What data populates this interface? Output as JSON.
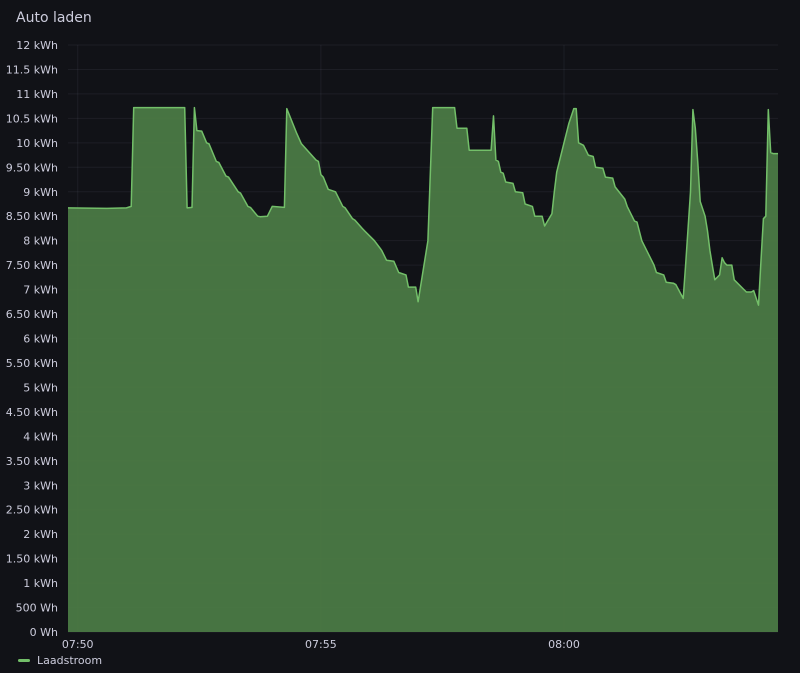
{
  "panel": {
    "title": "Auto laden"
  },
  "chart_data": {
    "type": "area",
    "title": "Auto laden",
    "x_unit": "minutes",
    "x_range": [
      49.8,
      64.4
    ],
    "x_ticks": [
      {
        "value": 50,
        "label": "07:50"
      },
      {
        "value": 55,
        "label": "07:55"
      },
      {
        "value": 60,
        "label": "08:00"
      }
    ],
    "ylim": [
      0,
      12
    ],
    "y_ticks": [
      {
        "value": 0,
        "label": "0 Wh"
      },
      {
        "value": 0.5,
        "label": "500 Wh"
      },
      {
        "value": 1,
        "label": "1 kWh"
      },
      {
        "value": 1.5,
        "label": "1.50 kWh"
      },
      {
        "value": 2,
        "label": "2 kWh"
      },
      {
        "value": 2.5,
        "label": "2.50 kWh"
      },
      {
        "value": 3,
        "label": "3 kWh"
      },
      {
        "value": 3.5,
        "label": "3.50 kWh"
      },
      {
        "value": 4,
        "label": "4 kWh"
      },
      {
        "value": 4.5,
        "label": "4.50 kWh"
      },
      {
        "value": 5,
        "label": "5 kWh"
      },
      {
        "value": 5.5,
        "label": "5.50 kWh"
      },
      {
        "value": 6,
        "label": "6 kWh"
      },
      {
        "value": 6.5,
        "label": "6.50 kWh"
      },
      {
        "value": 7,
        "label": "7 kWh"
      },
      {
        "value": 7.5,
        "label": "7.50 kWh"
      },
      {
        "value": 8,
        "label": "8 kWh"
      },
      {
        "value": 8.5,
        "label": "8.50 kWh"
      },
      {
        "value": 9,
        "label": "9 kWh"
      },
      {
        "value": 9.5,
        "label": "9.50 kWh"
      },
      {
        "value": 10,
        "label": "10 kWh"
      },
      {
        "value": 10.5,
        "label": "10.5 kWh"
      },
      {
        "value": 11,
        "label": "11 kWh"
      },
      {
        "value": 11.5,
        "label": "11.5 kWh"
      },
      {
        "value": 12,
        "label": "12 kWh"
      }
    ],
    "grid": true,
    "legend": "bottom-left",
    "series": [
      {
        "name": "Laadstroom",
        "color": "#73bf69",
        "fill": "#4b7a45",
        "x": [
          49.8,
          50.6,
          51.0,
          51.1,
          51.15,
          52.2,
          52.25,
          52.35,
          52.4,
          52.45,
          52.55,
          52.65,
          52.7,
          52.85,
          52.9,
          53.05,
          53.1,
          53.3,
          53.35,
          53.5,
          53.55,
          53.7,
          53.75,
          53.9,
          54.0,
          54.25,
          54.3,
          54.5,
          54.6,
          54.9,
          54.95,
          55.0,
          55.05,
          55.15,
          55.3,
          55.45,
          55.5,
          55.65,
          55.7,
          55.85,
          55.9,
          56.05,
          56.1,
          56.25,
          56.35,
          56.5,
          56.6,
          56.75,
          56.8,
          56.95,
          57.0,
          57.2,
          57.3,
          57.35,
          57.5,
          57.55,
          57.75,
          57.8,
          58.0,
          58.05,
          58.5,
          58.55,
          58.6,
          58.65,
          58.7,
          58.75,
          58.8,
          58.95,
          59.0,
          59.15,
          59.2,
          59.35,
          59.4,
          59.55,
          59.6,
          59.75,
          59.8,
          59.85,
          60.0,
          60.1,
          60.2,
          60.25,
          60.3,
          60.4,
          60.5,
          60.6,
          60.65,
          60.8,
          60.85,
          61.0,
          61.05,
          61.25,
          61.3,
          61.45,
          61.5,
          61.6,
          61.75,
          61.85,
          61.9,
          62.05,
          62.1,
          62.25,
          62.3,
          62.45,
          62.5,
          62.6,
          62.65,
          62.7,
          62.75,
          62.8,
          62.9,
          62.95,
          63.0,
          63.05,
          63.1,
          63.2,
          63.25,
          63.3,
          63.35,
          63.45,
          63.5,
          63.7,
          63.75,
          63.85,
          63.9,
          64.0,
          64.05,
          64.1,
          64.15,
          64.2,
          64.25,
          64.3,
          64.4
        ],
        "y": [
          8.67,
          8.66,
          8.67,
          8.7,
          10.72,
          10.72,
          8.67,
          8.68,
          10.72,
          10.25,
          10.24,
          10.0,
          9.98,
          9.62,
          9.6,
          9.32,
          9.3,
          9.0,
          8.97,
          8.7,
          8.68,
          8.5,
          8.49,
          8.5,
          8.7,
          8.68,
          10.7,
          10.2,
          9.98,
          9.65,
          9.62,
          9.35,
          9.3,
          9.05,
          9.0,
          8.7,
          8.67,
          8.45,
          8.42,
          8.25,
          8.2,
          8.05,
          8.0,
          7.8,
          7.6,
          7.58,
          7.35,
          7.3,
          7.05,
          7.05,
          6.75,
          8.0,
          10.72,
          10.72,
          10.72,
          10.72,
          10.72,
          10.3,
          10.3,
          9.85,
          9.85,
          10.55,
          9.65,
          9.62,
          9.4,
          9.38,
          9.2,
          9.17,
          9.0,
          8.98,
          8.75,
          8.7,
          8.5,
          8.5,
          8.3,
          8.55,
          9.0,
          9.4,
          10.0,
          10.4,
          10.7,
          10.7,
          10.0,
          9.95,
          9.75,
          9.72,
          9.5,
          9.48,
          9.3,
          9.28,
          9.1,
          8.85,
          8.7,
          8.4,
          8.38,
          8.0,
          7.7,
          7.5,
          7.35,
          7.3,
          7.15,
          7.13,
          7.1,
          6.82,
          7.5,
          9.0,
          10.68,
          10.3,
          9.6,
          8.8,
          8.5,
          8.2,
          7.8,
          7.5,
          7.2,
          7.3,
          7.65,
          7.55,
          7.5,
          7.5,
          7.2,
          7.0,
          6.95,
          6.95,
          6.98,
          6.68,
          7.6,
          8.45,
          8.5,
          10.68,
          9.8,
          9.78,
          9.78
        ]
      }
    ]
  }
}
